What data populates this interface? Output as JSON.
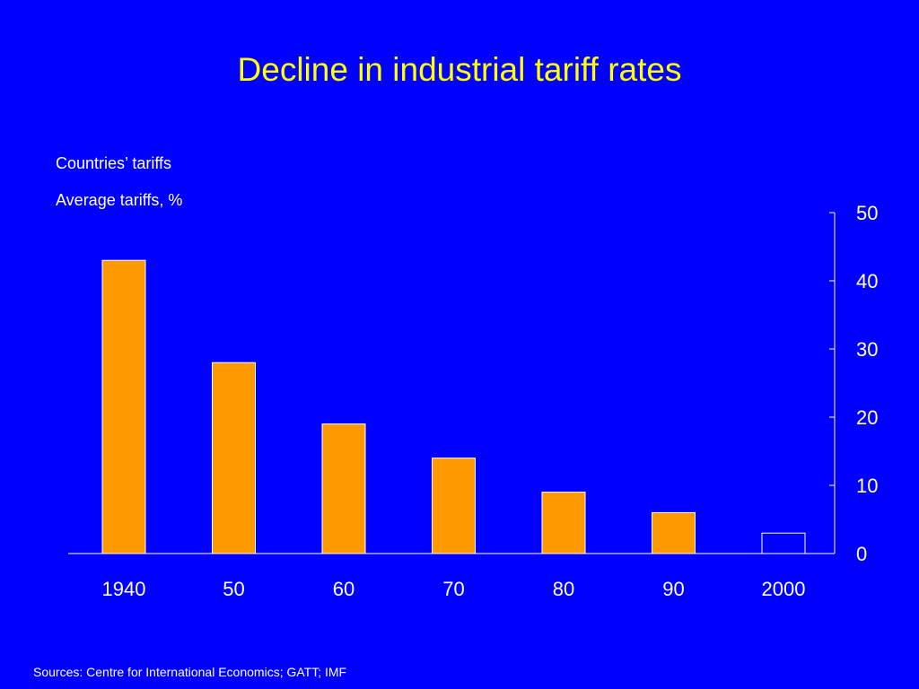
{
  "slide": {
    "title": "Decline in industrial tariff rates",
    "subtitle_1": "Countries’ tariffs",
    "subtitle_2": "Average tariffs, %",
    "source": "Sources: Centre for International Economics; GATT; IMF"
  },
  "colors": {
    "background": "#0000ff",
    "title": "#ffff00",
    "bar_fill": "#ff9900",
    "bar_outline": "#ffffff",
    "projection_fill": "#0000ff",
    "text": "#ffffff"
  },
  "chart_data": {
    "type": "bar",
    "categories": [
      "1940",
      "50",
      "60",
      "70",
      "80",
      "90",
      "2000"
    ],
    "values": [
      43,
      28,
      19,
      14,
      9,
      6,
      3
    ],
    "hollow_categories": [
      "2000"
    ],
    "ylim": [
      0,
      50
    ],
    "yticks": [
      0,
      10,
      20,
      30,
      40,
      50
    ],
    "y_axis_position": "right",
    "grid": false,
    "legend": "none"
  }
}
